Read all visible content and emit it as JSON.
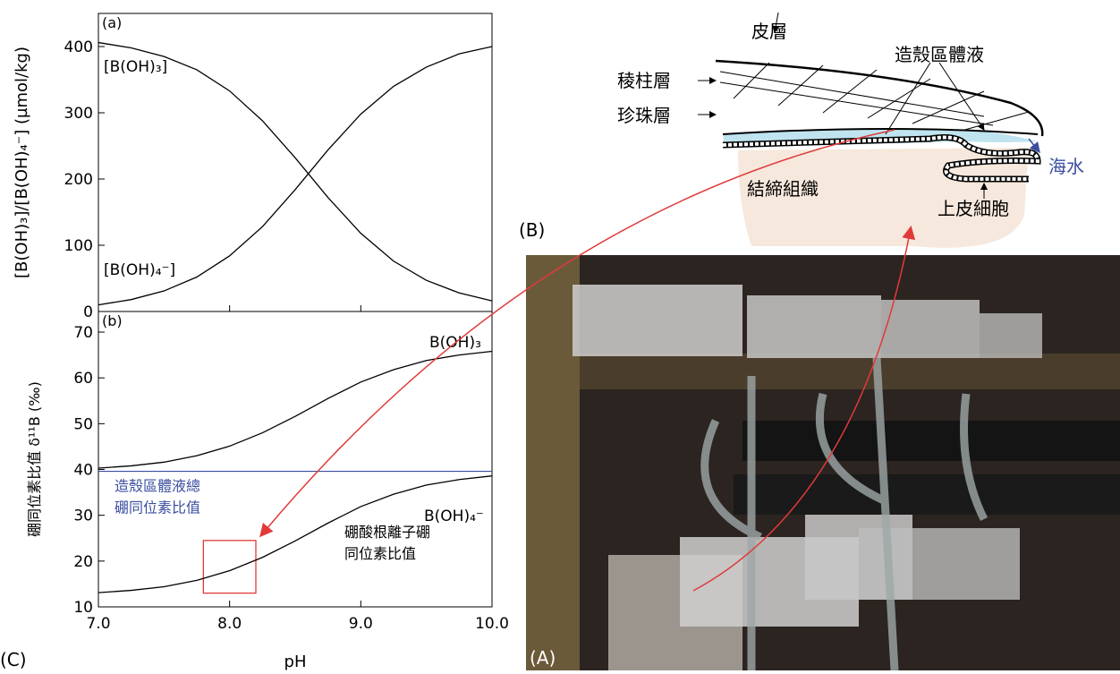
{
  "figure_labels": {
    "c": "(C)",
    "a": "(A)",
    "b": "(B)"
  },
  "chart_data": [
    {
      "type": "line",
      "panel": "(a)",
      "ylabel": "[B(OH)₃]/[B(OH)₄⁻] (µmol/kg)",
      "xlim": [
        7,
        10
      ],
      "ylim": [
        0,
        450
      ],
      "yticks": [
        0,
        100,
        200,
        300,
        400
      ],
      "x": [
        7.0,
        7.25,
        7.5,
        7.75,
        8.0,
        8.25,
        8.5,
        8.75,
        9.0,
        9.25,
        9.5,
        9.75,
        10.0
      ],
      "series": [
        {
          "name": "[B(OH)₃]",
          "color": "#000000",
          "values": [
            406,
            398,
            385,
            365,
            333,
            288,
            232,
            172,
            118,
            76,
            47,
            28,
            16
          ]
        },
        {
          "name": "[B(OH)₄⁻]",
          "color": "#000000",
          "values": [
            10,
            18,
            31,
            52,
            84,
            128,
            184,
            244,
            298,
            340,
            369,
            389,
            400
          ]
        }
      ]
    },
    {
      "type": "line",
      "panel": "(b)",
      "xlabel": "pH",
      "ylabel": "硼同位素比值 δ¹¹B (‰)",
      "xlim": [
        7,
        10
      ],
      "xticks": [
        {
          "value": 7,
          "label": "7.0"
        },
        {
          "value": 8,
          "label": "8.0"
        },
        {
          "value": 9,
          "label": "9.0"
        },
        {
          "value": 10,
          "label": "10.0"
        }
      ],
      "ylim": [
        10,
        74.5
      ],
      "yticks": [
        10,
        20,
        30,
        40,
        50,
        60,
        70
      ],
      "x": [
        7.0,
        7.25,
        7.5,
        7.75,
        8.0,
        8.25,
        8.5,
        8.75,
        9.0,
        9.25,
        9.5,
        9.75,
        10.0
      ],
      "series": [
        {
          "name": "B(OH)₃",
          "color": "#000000",
          "values": [
            40.3,
            40.8,
            41.6,
            43.0,
            45.1,
            48.0,
            51.6,
            55.5,
            59.1,
            61.8,
            63.8,
            65.0,
            65.8
          ]
        },
        {
          "name": "B(OH)₄⁻",
          "color": "#000000",
          "values": [
            13.1,
            13.6,
            14.4,
            15.8,
            17.9,
            20.8,
            24.4,
            28.3,
            31.9,
            34.6,
            36.6,
            37.8,
            38.6
          ]
        }
      ],
      "reference_line": {
        "value": 39.6,
        "color": "#3b4ea0",
        "label": [
          "造殼區體液總",
          "硼同位素比值"
        ]
      },
      "annotation": [
        "硼酸根離子硼",
        "同位素比值"
      ],
      "highlight": {
        "xlim": [
          7.8,
          8.2
        ],
        "ylim": [
          13,
          24.5
        ],
        "color": "#e03a3a"
      }
    }
  ],
  "diagram": {
    "periostracum": "皮層",
    "prismatic": "稜柱層",
    "nacre": "珍珠層",
    "fluid": "造殼區體液",
    "seawater": "海水",
    "tissue": "結締組織",
    "epithelium": "上皮細胞"
  }
}
